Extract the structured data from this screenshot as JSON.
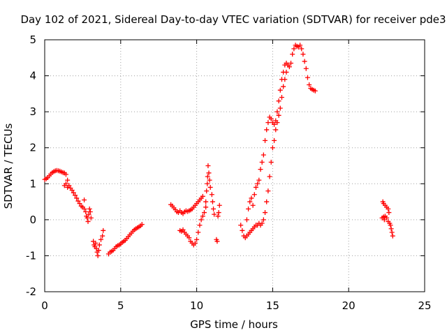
{
  "chart_data": {
    "type": "scatter",
    "title": "Day 102 of 2021, Sidereal Day-to-day VTEC variation (SDTVAR) for receiver pde3",
    "xlabel": "GPS time / hours",
    "ylabel": "SDTVAR / TECUs",
    "xlim": [
      0,
      25
    ],
    "ylim": [
      -2,
      5
    ],
    "grid": true,
    "marker": "+",
    "marker_color": "#ff0000",
    "xticks": [
      0,
      5,
      10,
      15,
      20,
      25
    ],
    "yticks": [
      -2,
      -1,
      0,
      1,
      2,
      3,
      4,
      5
    ],
    "series": [
      {
        "name": "SDTVAR",
        "points": [
          [
            0.0,
            1.12
          ],
          [
            0.1,
            1.14
          ],
          [
            0.2,
            1.17
          ],
          [
            0.3,
            1.22
          ],
          [
            0.4,
            1.27
          ],
          [
            0.5,
            1.31
          ],
          [
            0.6,
            1.34
          ],
          [
            0.7,
            1.36
          ],
          [
            0.8,
            1.37
          ],
          [
            0.9,
            1.36
          ],
          [
            1.0,
            1.35
          ],
          [
            1.1,
            1.33
          ],
          [
            1.2,
            1.31
          ],
          [
            1.3,
            1.3
          ],
          [
            1.4,
            1.26
          ],
          [
            1.5,
            1.1
          ],
          [
            1.3,
            0.95
          ],
          [
            1.4,
            1.0
          ],
          [
            1.5,
            0.9
          ],
          [
            1.6,
            0.95
          ],
          [
            1.7,
            0.88
          ],
          [
            1.8,
            0.82
          ],
          [
            1.9,
            0.75
          ],
          [
            2.0,
            0.68
          ],
          [
            2.1,
            0.6
          ],
          [
            2.2,
            0.52
          ],
          [
            2.3,
            0.45
          ],
          [
            2.4,
            0.38
          ],
          [
            2.5,
            0.35
          ],
          [
            2.6,
            0.55
          ],
          [
            2.6,
            0.3
          ],
          [
            2.7,
            0.22
          ],
          [
            2.75,
            0.1
          ],
          [
            2.8,
            0.05
          ],
          [
            2.85,
            -0.05
          ],
          [
            2.9,
            0.15
          ],
          [
            2.95,
            0.3
          ],
          [
            3.0,
            0.22
          ],
          [
            3.05,
            0.05
          ],
          [
            3.2,
            -0.6
          ],
          [
            3.25,
            -0.7
          ],
          [
            3.3,
            -0.75
          ],
          [
            3.35,
            -0.65
          ],
          [
            3.4,
            -0.8
          ],
          [
            3.45,
            -0.9
          ],
          [
            3.5,
            -1.0
          ],
          [
            3.55,
            -0.85
          ],
          [
            3.6,
            -0.7
          ],
          [
            3.7,
            -0.55
          ],
          [
            3.8,
            -0.45
          ],
          [
            3.85,
            -0.3
          ],
          [
            4.2,
            -0.95
          ],
          [
            4.3,
            -0.9
          ],
          [
            4.4,
            -0.88
          ],
          [
            4.5,
            -0.85
          ],
          [
            4.6,
            -0.8
          ],
          [
            4.7,
            -0.75
          ],
          [
            4.8,
            -0.72
          ],
          [
            4.9,
            -0.7
          ],
          [
            5.0,
            -0.67
          ],
          [
            5.1,
            -0.63
          ],
          [
            5.2,
            -0.6
          ],
          [
            5.3,
            -0.57
          ],
          [
            5.4,
            -0.52
          ],
          [
            5.5,
            -0.47
          ],
          [
            5.6,
            -0.42
          ],
          [
            5.7,
            -0.37
          ],
          [
            5.8,
            -0.32
          ],
          [
            5.9,
            -0.28
          ],
          [
            6.0,
            -0.25
          ],
          [
            6.1,
            -0.22
          ],
          [
            6.2,
            -0.2
          ],
          [
            6.3,
            -0.17
          ],
          [
            6.4,
            -0.13
          ],
          [
            8.3,
            0.42
          ],
          [
            8.4,
            0.38
          ],
          [
            8.5,
            0.33
          ],
          [
            8.6,
            0.28
          ],
          [
            8.7,
            0.22
          ],
          [
            8.8,
            0.2
          ],
          [
            8.9,
            0.25
          ],
          [
            9.0,
            0.2
          ],
          [
            9.1,
            0.17
          ],
          [
            9.2,
            0.22
          ],
          [
            9.3,
            0.25
          ],
          [
            9.4,
            0.23
          ],
          [
            9.5,
            0.25
          ],
          [
            9.6,
            0.27
          ],
          [
            9.7,
            0.3
          ],
          [
            9.8,
            0.35
          ],
          [
            9.9,
            0.4
          ],
          [
            10.0,
            0.45
          ],
          [
            10.1,
            0.5
          ],
          [
            10.2,
            0.55
          ],
          [
            10.3,
            0.6
          ],
          [
            10.4,
            0.65
          ],
          [
            8.9,
            -0.3
          ],
          [
            9.0,
            -0.32
          ],
          [
            9.1,
            -0.28
          ],
          [
            9.2,
            -0.35
          ],
          [
            9.3,
            -0.4
          ],
          [
            9.4,
            -0.45
          ],
          [
            9.5,
            -0.5
          ],
          [
            9.6,
            -0.6
          ],
          [
            9.7,
            -0.65
          ],
          [
            9.8,
            -0.7
          ],
          [
            9.9,
            -0.65
          ],
          [
            10.0,
            -0.55
          ],
          [
            10.1,
            -0.35
          ],
          [
            10.2,
            -0.15
          ],
          [
            10.3,
            0.0
          ],
          [
            10.4,
            0.1
          ],
          [
            10.5,
            0.2
          ],
          [
            10.6,
            0.35
          ],
          [
            10.6,
            0.5
          ],
          [
            10.65,
            0.8
          ],
          [
            10.7,
            1.0
          ],
          [
            10.72,
            1.2
          ],
          [
            10.75,
            1.5
          ],
          [
            10.8,
            1.3
          ],
          [
            10.85,
            1.1
          ],
          [
            10.9,
            0.9
          ],
          [
            11.0,
            0.7
          ],
          [
            11.05,
            0.5
          ],
          [
            11.1,
            0.3
          ],
          [
            11.15,
            0.15
          ],
          [
            11.3,
            -0.55
          ],
          [
            11.35,
            -0.6
          ],
          [
            11.4,
            0.1
          ],
          [
            11.45,
            0.2
          ],
          [
            11.5,
            0.4
          ],
          [
            12.9,
            -0.15
          ],
          [
            13.0,
            -0.3
          ],
          [
            13.1,
            -0.45
          ],
          [
            13.2,
            -0.5
          ],
          [
            13.3,
            -0.45
          ],
          [
            13.4,
            -0.4
          ],
          [
            13.5,
            -0.35
          ],
          [
            13.6,
            -0.3
          ],
          [
            13.7,
            -0.25
          ],
          [
            13.8,
            -0.2
          ],
          [
            13.9,
            -0.15
          ],
          [
            14.0,
            -0.15
          ],
          [
            14.1,
            -0.1
          ],
          [
            14.2,
            -0.15
          ],
          [
            14.3,
            -0.1
          ],
          [
            14.4,
            0.0
          ],
          [
            14.5,
            0.2
          ],
          [
            14.6,
            0.5
          ],
          [
            14.7,
            0.8
          ],
          [
            14.8,
            1.2
          ],
          [
            14.9,
            1.6
          ],
          [
            15.0,
            2.0
          ],
          [
            15.1,
            2.2
          ],
          [
            15.2,
            2.5
          ],
          [
            15.3,
            2.7
          ],
          [
            15.4,
            2.9
          ],
          [
            15.5,
            3.1
          ],
          [
            15.6,
            3.4
          ],
          [
            15.7,
            3.7
          ],
          [
            15.8,
            3.9
          ],
          [
            15.9,
            4.1
          ],
          [
            16.0,
            4.3
          ],
          [
            13.3,
            0.0
          ],
          [
            13.4,
            0.3
          ],
          [
            13.5,
            0.5
          ],
          [
            13.6,
            0.6
          ],
          [
            13.7,
            0.4
          ],
          [
            13.8,
            0.7
          ],
          [
            13.9,
            0.9
          ],
          [
            14.0,
            1.0
          ],
          [
            14.1,
            1.1
          ],
          [
            14.2,
            1.4
          ],
          [
            14.3,
            1.6
          ],
          [
            14.4,
            1.8
          ],
          [
            14.5,
            2.2
          ],
          [
            14.6,
            2.5
          ],
          [
            14.7,
            2.7
          ],
          [
            14.8,
            2.85
          ],
          [
            14.9,
            2.8
          ],
          [
            15.0,
            2.7
          ],
          [
            15.1,
            2.65
          ],
          [
            15.2,
            2.75
          ],
          [
            15.3,
            3.0
          ],
          [
            15.4,
            3.3
          ],
          [
            15.5,
            3.6
          ],
          [
            15.6,
            3.9
          ],
          [
            15.7,
            4.1
          ],
          [
            15.8,
            4.3
          ],
          [
            15.9,
            4.35
          ],
          [
            16.0,
            4.3
          ],
          [
            16.1,
            4.25
          ],
          [
            16.2,
            4.35
          ],
          [
            16.3,
            4.6
          ],
          [
            16.4,
            4.75
          ],
          [
            16.5,
            4.85
          ],
          [
            16.6,
            4.82
          ],
          [
            16.7,
            4.8
          ],
          [
            16.8,
            4.85
          ],
          [
            16.9,
            4.75
          ],
          [
            17.0,
            4.6
          ],
          [
            17.1,
            4.4
          ],
          [
            17.2,
            4.2
          ],
          [
            17.3,
            3.95
          ],
          [
            17.4,
            3.75
          ],
          [
            17.5,
            3.65
          ],
          [
            17.6,
            3.62
          ],
          [
            17.7,
            3.6
          ],
          [
            17.8,
            3.58
          ],
          [
            22.2,
            0.05
          ],
          [
            22.3,
            0.08
          ],
          [
            22.35,
            0.0
          ],
          [
            22.4,
            0.1
          ],
          [
            22.5,
            0.05
          ],
          [
            22.6,
            -0.05
          ],
          [
            22.25,
            0.5
          ],
          [
            22.3,
            0.45
          ],
          [
            22.4,
            0.4
          ],
          [
            22.5,
            0.35
          ],
          [
            22.6,
            0.3
          ],
          [
            22.65,
            0.2
          ],
          [
            22.7,
            -0.1
          ],
          [
            22.75,
            -0.15
          ],
          [
            22.8,
            -0.25
          ],
          [
            22.85,
            -0.35
          ],
          [
            22.9,
            -0.45
          ]
        ]
      }
    ]
  }
}
